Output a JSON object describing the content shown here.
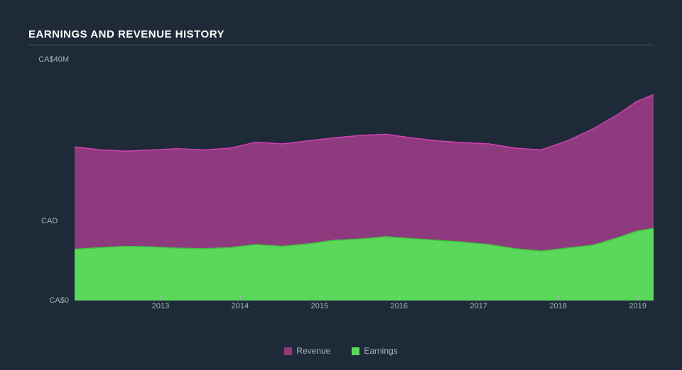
{
  "title": "EARNINGS AND REVENUE HISTORY",
  "chart": {
    "type": "area",
    "background_color": "#1e2a38",
    "text_color": "#aab4bf",
    "title_color": "#ffffff",
    "divider_color": "#4a5866",
    "currency_mid_label": "CAD",
    "ylim": [
      0,
      40
    ],
    "y_ticks": [
      {
        "value": 40,
        "label": "CA$40M"
      },
      {
        "value": 0,
        "label": "CA$0"
      }
    ],
    "x_range": [
      2012.5,
      2019.2
    ],
    "x_ticks": [
      2013,
      2014,
      2015,
      2016,
      2017,
      2018,
      2019
    ],
    "series": [
      {
        "name": "Earnings",
        "fill_color": "#5bd75b",
        "stroke_color": "#3fc13f",
        "points": [
          [
            2012.5,
            8.5
          ],
          [
            2012.8,
            8.8
          ],
          [
            2013.1,
            9.0
          ],
          [
            2013.4,
            8.9
          ],
          [
            2013.7,
            8.7
          ],
          [
            2014.0,
            8.6
          ],
          [
            2014.3,
            8.8
          ],
          [
            2014.6,
            9.3
          ],
          [
            2014.9,
            9.0
          ],
          [
            2015.2,
            9.4
          ],
          [
            2015.5,
            10.0
          ],
          [
            2015.8,
            10.2
          ],
          [
            2016.1,
            10.6
          ],
          [
            2016.4,
            10.3
          ],
          [
            2016.7,
            10.0
          ],
          [
            2017.0,
            9.7
          ],
          [
            2017.3,
            9.3
          ],
          [
            2017.6,
            8.6
          ],
          [
            2017.9,
            8.2
          ],
          [
            2018.2,
            8.7
          ],
          [
            2018.5,
            9.2
          ],
          [
            2018.8,
            10.5
          ],
          [
            2019.0,
            11.5
          ],
          [
            2019.2,
            12.0
          ]
        ]
      },
      {
        "name": "Revenue",
        "fill_color": "#8e3a7f",
        "stroke_color": "#d63fb5",
        "points": [
          [
            2012.5,
            25.5
          ],
          [
            2012.8,
            25.0
          ],
          [
            2013.1,
            24.8
          ],
          [
            2013.4,
            25.0
          ],
          [
            2013.7,
            25.2
          ],
          [
            2014.0,
            25.0
          ],
          [
            2014.3,
            25.3
          ],
          [
            2014.6,
            26.3
          ],
          [
            2014.9,
            26.0
          ],
          [
            2015.2,
            26.5
          ],
          [
            2015.5,
            27.0
          ],
          [
            2015.8,
            27.4
          ],
          [
            2016.1,
            27.6
          ],
          [
            2016.4,
            27.0
          ],
          [
            2016.7,
            26.5
          ],
          [
            2017.0,
            26.2
          ],
          [
            2017.3,
            26.0
          ],
          [
            2017.6,
            25.3
          ],
          [
            2017.9,
            25.0
          ],
          [
            2018.2,
            26.5
          ],
          [
            2018.5,
            28.5
          ],
          [
            2018.8,
            31.0
          ],
          [
            2019.0,
            33.0
          ],
          [
            2019.2,
            34.2
          ]
        ]
      }
    ],
    "legend_order": [
      "Revenue",
      "Earnings"
    ],
    "legend_fontsize": 12,
    "axis_fontsize": 11,
    "title_fontsize": 15
  }
}
